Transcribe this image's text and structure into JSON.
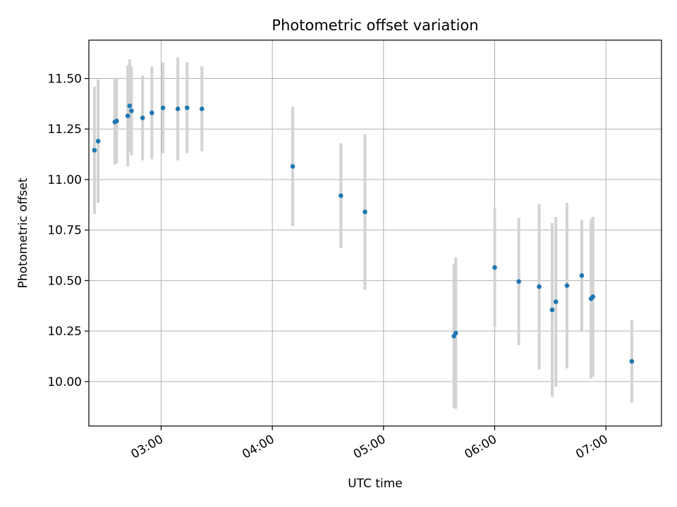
{
  "chart_data": {
    "type": "scatter",
    "title": "Photometric offset variation",
    "xlabel": "UTC time",
    "ylabel": "Photometric offset",
    "x_tick_labels": [
      "03:00",
      "04:00",
      "05:00",
      "06:00",
      "07:00"
    ],
    "x_ticks": [
      "03:00",
      "04:00",
      "05:00",
      "06:00",
      "07:00"
    ],
    "y_ticks": [
      10.0,
      10.25,
      10.5,
      10.75,
      11.0,
      11.25,
      11.5
    ],
    "y_tick_labels": [
      "10.00",
      "10.25",
      "10.50",
      "10.75",
      "11.00",
      "11.25",
      "11.50"
    ],
    "xlim": [
      "02:21",
      "07:30"
    ],
    "ylim": [
      9.78,
      11.69
    ],
    "grid": true,
    "marker_color": "#1f77b4",
    "errorbar_color": "#d3d3d3",
    "points": [
      {
        "time": "02:24",
        "y": 11.145,
        "err": 0.315
      },
      {
        "time": "02:26",
        "y": 11.19,
        "err": 0.305
      },
      {
        "time": "02:35",
        "y": 11.285,
        "err": 0.21
      },
      {
        "time": "02:36",
        "y": 11.29,
        "err": 0.21
      },
      {
        "time": "02:42",
        "y": 11.315,
        "err": 0.25
      },
      {
        "time": "02:43",
        "y": 11.365,
        "err": 0.23
      },
      {
        "time": "02:44",
        "y": 11.34,
        "err": 0.22
      },
      {
        "time": "02:50",
        "y": 11.305,
        "err": 0.21
      },
      {
        "time": "02:55",
        "y": 11.33,
        "err": 0.23
      },
      {
        "time": "03:01",
        "y": 11.355,
        "err": 0.225
      },
      {
        "time": "03:09",
        "y": 11.35,
        "err": 0.255
      },
      {
        "time": "03:14",
        "y": 11.355,
        "err": 0.225
      },
      {
        "time": "03:22",
        "y": 11.35,
        "err": 0.21
      },
      {
        "time": "04:11",
        "y": 11.065,
        "err": 0.295
      },
      {
        "time": "04:37",
        "y": 10.92,
        "err": 0.26
      },
      {
        "time": "04:50",
        "y": 10.84,
        "err": 0.385
      },
      {
        "time": "05:38",
        "y": 10.225,
        "err": 0.355
      },
      {
        "time": "05:39",
        "y": 10.24,
        "err": 0.375
      },
      {
        "time": "06:00",
        "y": 10.565,
        "err": 0.295
      },
      {
        "time": "06:13",
        "y": 10.495,
        "err": 0.315
      },
      {
        "time": "06:24",
        "y": 10.47,
        "err": 0.41
      },
      {
        "time": "06:31",
        "y": 10.355,
        "err": 0.43
      },
      {
        "time": "06:33",
        "y": 10.395,
        "err": 0.42
      },
      {
        "time": "06:39",
        "y": 10.475,
        "err": 0.41
      },
      {
        "time": "06:47",
        "y": 10.525,
        "err": 0.275
      },
      {
        "time": "06:52",
        "y": 10.41,
        "err": 0.395
      },
      {
        "time": "06:53",
        "y": 10.42,
        "err": 0.395
      },
      {
        "time": "07:14",
        "y": 10.1,
        "err": 0.205
      }
    ]
  }
}
